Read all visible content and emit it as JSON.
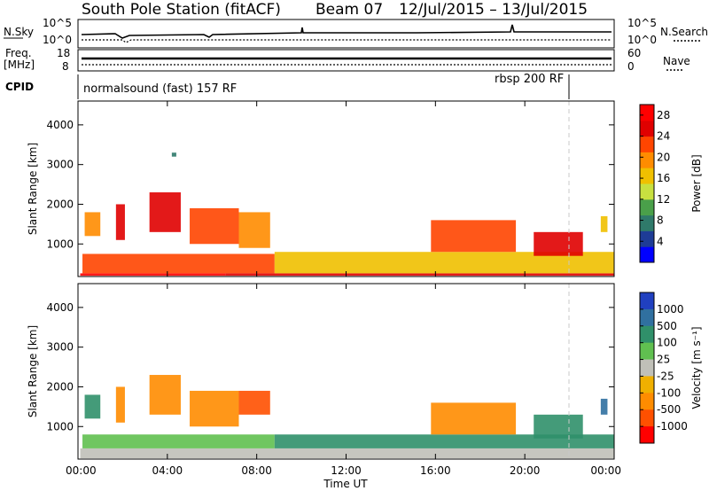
{
  "header": {
    "station": "South Pole Station (fitACF)",
    "beam": "Beam 07",
    "dates": "12/Jul/2015 – 13/Jul/2015"
  },
  "housekeeping": {
    "nsky_label": "N.Sky",
    "nsearch_label": "N.Search",
    "freq_label_1": "Freq.",
    "freq_label_2": "[MHz]",
    "nave_label": "Nave",
    "cpid_label": "CPID",
    "noise_left_ticks": [
      "10^5",
      "10^0"
    ],
    "noise_right_ticks": [
      "10^5",
      "10^0"
    ],
    "freq_left_ticks": [
      "18",
      "8"
    ],
    "nave_right_ticks": [
      "60",
      "0"
    ],
    "cpid_segments": [
      {
        "label": "normalsound (fast) 157 RF",
        "start_hour": 0
      },
      {
        "label": "rbsp 200 RF",
        "start_hour": 22
      }
    ]
  },
  "colors": {
    "power_scale": [
      "#0000ff",
      "#1e3c96",
      "#2f7a6a",
      "#4aa04a",
      "#c8e040",
      "#f0c000",
      "#ff8c00",
      "#ff4500",
      "#e00000",
      "#ff0000"
    ],
    "velocity_scale": [
      "#2040c0",
      "#3070a0",
      "#30906a",
      "#60c050",
      "#c0c0b8",
      "#f0b000",
      "#ff8c00",
      "#ff5000",
      "#ff0000",
      "#cc0000"
    ],
    "ground_scatter": "#c0c0b8"
  },
  "chart_data": [
    {
      "type": "heatmap",
      "title": "Power",
      "xlabel": "",
      "ylabel": "Slant Range [km]",
      "xlim": [
        0,
        24
      ],
      "ylim": [
        180,
        4600
      ],
      "y_ticks": [
        "1000",
        "2000",
        "3000",
        "4000"
      ],
      "colorbar_label": "Power [dB]",
      "colorbar_ticks": [
        "4",
        "8",
        "12",
        "16",
        "20",
        "24",
        "28"
      ],
      "colorbar_range": [
        0,
        30
      ],
      "regions": [
        {
          "t0": 0.1,
          "t1": 6.6,
          "r0": 200,
          "r1": 260,
          "value": 30
        },
        {
          "t0": 6.6,
          "t1": 24.0,
          "r0": 200,
          "r1": 260,
          "value": 24
        },
        {
          "t0": 0.2,
          "t1": 8.8,
          "r0": 260,
          "r1": 750,
          "value": 22
        },
        {
          "t0": 8.8,
          "t1": 24.0,
          "r0": 260,
          "r1": 800,
          "value": 15
        },
        {
          "t0": 0.3,
          "t1": 1.0,
          "r0": 1200,
          "r1": 1800,
          "value": 18
        },
        {
          "t0": 1.7,
          "t1": 2.1,
          "r0": 1100,
          "r1": 2000,
          "value": 24
        },
        {
          "t0": 3.2,
          "t1": 4.6,
          "r0": 1300,
          "r1": 2300,
          "value": 26
        },
        {
          "t0": 5.0,
          "t1": 7.2,
          "r0": 1000,
          "r1": 1900,
          "value": 22
        },
        {
          "t0": 7.2,
          "t1": 8.6,
          "r0": 900,
          "r1": 1800,
          "value": 20
        },
        {
          "t0": 4.2,
          "t1": 4.4,
          "r0": 3200,
          "r1": 3300,
          "value": 8
        },
        {
          "t0": 15.8,
          "t1": 19.6,
          "r0": 800,
          "r1": 1600,
          "value": 22
        },
        {
          "t0": 20.4,
          "t1": 22.6,
          "r0": 700,
          "r1": 1300,
          "value": 26
        },
        {
          "t0": 23.4,
          "t1": 23.7,
          "r0": 1300,
          "r1": 1700,
          "value": 16
        }
      ]
    },
    {
      "type": "heatmap",
      "title": "Velocity",
      "xlabel": "Time UT",
      "ylabel": "Slant Range [km]",
      "xlim": [
        0,
        24
      ],
      "ylim": [
        180,
        4600
      ],
      "x_ticks": [
        "00:00",
        "04:00",
        "08:00",
        "12:00",
        "16:00",
        "20:00",
        "00:00"
      ],
      "y_ticks": [
        "1000",
        "2000",
        "3000",
        "4000"
      ],
      "colorbar_label": "Velocity [m s⁻¹]",
      "colorbar_ticks": [
        "1000",
        "500",
        "100",
        "25",
        "-25",
        "-100",
        "-500",
        "-1000"
      ],
      "regions": [
        {
          "t0": 0.1,
          "t1": 24.0,
          "r0": 200,
          "r1": 450,
          "value": 0
        },
        {
          "t0": 0.2,
          "t1": 8.8,
          "r0": 450,
          "r1": 800,
          "value": 50
        },
        {
          "t0": 8.8,
          "t1": 24.0,
          "r0": 450,
          "r1": 800,
          "value": 100
        },
        {
          "t0": 0.3,
          "t1": 1.0,
          "r0": 1200,
          "r1": 1800,
          "value": 200
        },
        {
          "t0": 1.7,
          "t1": 2.1,
          "r0": 1100,
          "r1": 2000,
          "value": -150
        },
        {
          "t0": 3.2,
          "t1": 4.6,
          "r0": 1300,
          "r1": 2300,
          "value": -200
        },
        {
          "t0": 5.0,
          "t1": 7.2,
          "r0": 1000,
          "r1": 1900,
          "value": -200
        },
        {
          "t0": 7.2,
          "t1": 8.6,
          "r0": 1300,
          "r1": 1900,
          "value": -300
        },
        {
          "t0": 15.8,
          "t1": 19.6,
          "r0": 800,
          "r1": 1600,
          "value": -200
        },
        {
          "t0": 20.4,
          "t1": 22.6,
          "r0": 700,
          "r1": 1300,
          "value": 150
        },
        {
          "t0": 23.4,
          "t1": 23.7,
          "r0": 1300,
          "r1": 1700,
          "value": 400
        }
      ]
    }
  ]
}
